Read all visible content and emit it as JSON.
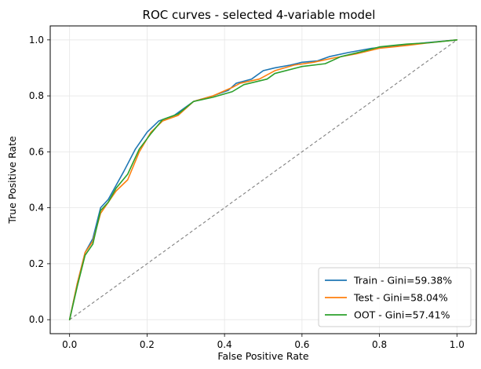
{
  "chart_data": {
    "type": "line",
    "title": "ROC curves - selected 4-variable model",
    "xlabel": "False Positive Rate",
    "ylabel": "True Positive Rate",
    "xlim": [
      -0.05,
      1.05
    ],
    "ylim": [
      -0.05,
      1.05
    ],
    "xticks": [
      "0.0",
      "0.2",
      "0.4",
      "0.6",
      "0.8",
      "1.0"
    ],
    "yticks": [
      "0.0",
      "0.2",
      "0.4",
      "0.6",
      "0.8",
      "1.0"
    ],
    "grid": true,
    "legend_position": "lower-right",
    "series": [
      {
        "name": "Train - Gini=59.38%",
        "color": "#1f77b4",
        "x": [
          0.0,
          0.02,
          0.04,
          0.06,
          0.08,
          0.1,
          0.12,
          0.14,
          0.17,
          0.2,
          0.23,
          0.27,
          0.32,
          0.37,
          0.41,
          0.43,
          0.47,
          0.5,
          0.53,
          0.57,
          0.6,
          0.64,
          0.67,
          0.72,
          0.78,
          0.85,
          0.92,
          1.0
        ],
        "y": [
          0.0,
          0.13,
          0.24,
          0.29,
          0.4,
          0.43,
          0.48,
          0.53,
          0.61,
          0.67,
          0.71,
          0.73,
          0.78,
          0.8,
          0.82,
          0.845,
          0.86,
          0.89,
          0.9,
          0.91,
          0.92,
          0.925,
          0.94,
          0.955,
          0.97,
          0.98,
          0.99,
          1.0
        ]
      },
      {
        "name": "Test - Gini=58.04%",
        "color": "#ff7f0e",
        "x": [
          0.0,
          0.02,
          0.04,
          0.06,
          0.08,
          0.1,
          0.12,
          0.15,
          0.18,
          0.21,
          0.24,
          0.28,
          0.32,
          0.37,
          0.42,
          0.44,
          0.49,
          0.53,
          0.58,
          0.63,
          0.68,
          0.74,
          0.8,
          0.87,
          0.93,
          1.0
        ],
        "y": [
          0.0,
          0.13,
          0.24,
          0.28,
          0.38,
          0.42,
          0.46,
          0.5,
          0.6,
          0.67,
          0.71,
          0.73,
          0.78,
          0.8,
          0.83,
          0.845,
          0.86,
          0.89,
          0.91,
          0.92,
          0.935,
          0.95,
          0.97,
          0.98,
          0.99,
          1.0
        ]
      },
      {
        "name": "OOT - Gini=57.41%",
        "color": "#2ca02c",
        "x": [
          0.0,
          0.02,
          0.04,
          0.06,
          0.08,
          0.1,
          0.12,
          0.15,
          0.18,
          0.21,
          0.24,
          0.28,
          0.32,
          0.37,
          0.42,
          0.45,
          0.51,
          0.53,
          0.6,
          0.66,
          0.7,
          0.76,
          0.8,
          0.87,
          0.93,
          1.0
        ],
        "y": [
          0.0,
          0.12,
          0.23,
          0.27,
          0.39,
          0.42,
          0.47,
          0.52,
          0.61,
          0.665,
          0.715,
          0.735,
          0.78,
          0.795,
          0.815,
          0.84,
          0.86,
          0.88,
          0.905,
          0.915,
          0.94,
          0.96,
          0.975,
          0.985,
          0.99,
          1.0
        ]
      }
    ],
    "reference_line": {
      "x": [
        0.0,
        1.0
      ],
      "y": [
        0.0,
        1.0
      ],
      "color": "#808080",
      "style": "dashed"
    }
  }
}
